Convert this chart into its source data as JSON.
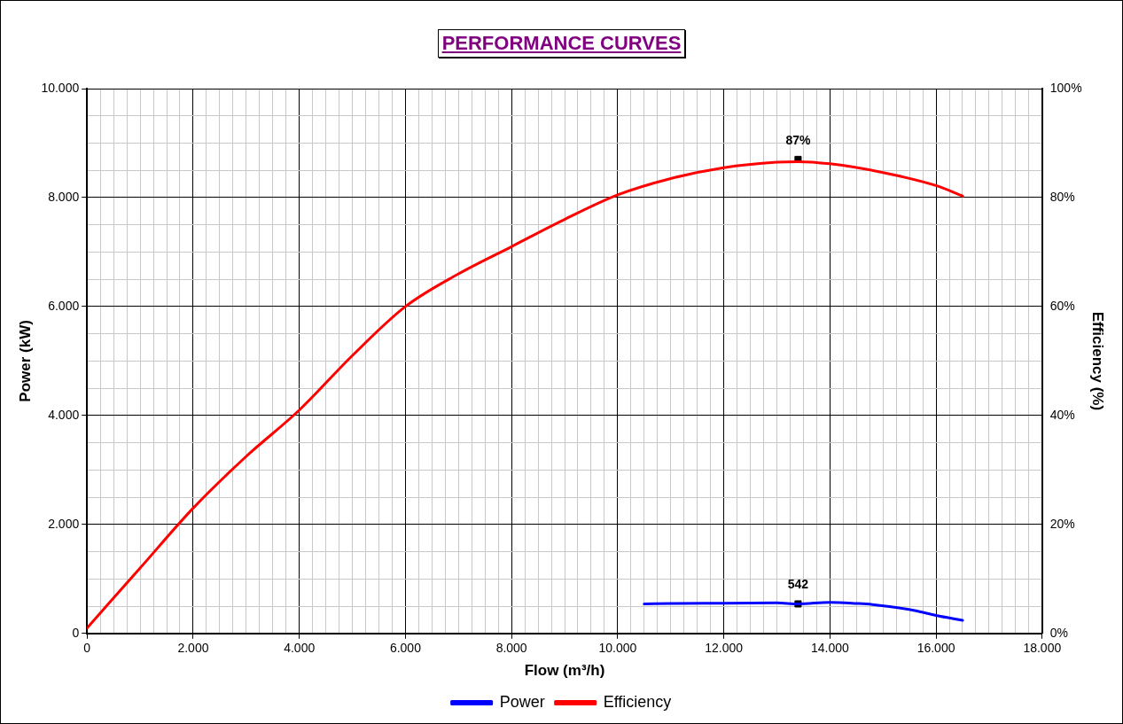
{
  "chart_data": {
    "type": "line",
    "title": "PERFORMANCE CURVES",
    "xlabel": "Flow (m³/h)",
    "ylabel": "Power (kW)",
    "y2label": "Efficiency (%)",
    "xlim": [
      0,
      18000
    ],
    "xticks": [
      0,
      {
        "value": 250,
        "label": null
      },
      {
        "value": 500,
        "label": null
      },
      {
        "value": 750,
        "label": null
      },
      {
        "value": 1000,
        "label": null
      },
      {
        "value": 1250,
        "label": null
      },
      {
        "value": 1500,
        "label": null
      },
      {
        "value": 1750,
        "label": null
      },
      {
        "value": 2000,
        "label": "2.000"
      },
      {
        "value": 2250,
        "label": null
      },
      {
        "value": 2500,
        "label": null
      },
      {
        "value": 2750,
        "label": null
      },
      {
        "value": 3000,
        "label": null
      },
      {
        "value": 3250,
        "label": null
      },
      {
        "value": 3500,
        "label": null
      },
      {
        "value": 3750,
        "label": null
      },
      {
        "value": 4000,
        "label": "4.000"
      },
      {
        "value": 4250,
        "label": null
      },
      {
        "value": 4500,
        "label": null
      },
      {
        "value": 4750,
        "label": null
      },
      {
        "value": 5000,
        "label": null
      },
      {
        "value": 5250,
        "label": null
      },
      {
        "value": 5500,
        "label": null
      },
      {
        "value": 5750,
        "label": null
      },
      {
        "value": 6000,
        "label": "6.000"
      },
      {
        "value": 6250,
        "label": null
      },
      {
        "value": 6500,
        "label": null
      },
      {
        "value": 6750,
        "label": null
      },
      {
        "value": 7000,
        "label": null
      },
      {
        "value": 7250,
        "label": null
      },
      {
        "value": 7500,
        "label": null
      },
      {
        "value": 7750,
        "label": null
      },
      {
        "value": 8000,
        "label": "8.000"
      },
      {
        "value": 8250,
        "label": null
      },
      {
        "value": 8500,
        "label": null
      },
      {
        "value": 8750,
        "label": null
      },
      {
        "value": 9000,
        "label": null
      },
      {
        "value": 9250,
        "label": null
      },
      {
        "value": 9500,
        "label": null
      },
      {
        "value": 9750,
        "label": null
      },
      {
        "value": 10000,
        "label": "10.000"
      },
      {
        "value": 10250,
        "label": null
      },
      {
        "value": 10500,
        "label": null
      },
      {
        "value": 10750,
        "label": null
      },
      {
        "value": 11000,
        "label": null
      },
      {
        "value": 11250,
        "label": null
      },
      {
        "value": 11500,
        "label": null
      },
      {
        "value": 11750,
        "label": null
      },
      {
        "value": 12000,
        "label": "12.000"
      },
      {
        "value": 12250,
        "label": null
      },
      {
        "value": 12500,
        "label": null
      },
      {
        "value": 12750,
        "label": null
      },
      {
        "value": 13000,
        "label": null
      },
      {
        "value": 13250,
        "label": null
      },
      {
        "value": 13500,
        "label": null
      },
      {
        "value": 13750,
        "label": null
      },
      {
        "value": 14000,
        "label": "14.000"
      },
      {
        "value": 14250,
        "label": null
      },
      {
        "value": 14500,
        "label": null
      },
      {
        "value": 14750,
        "label": null
      },
      {
        "value": 15000,
        "label": null
      },
      {
        "value": 15250,
        "label": null
      },
      {
        "value": 15500,
        "label": null
      },
      {
        "value": 15750,
        "label": null
      },
      {
        "value": 16000,
        "label": "16.000"
      },
      {
        "value": 16250,
        "label": null
      },
      {
        "value": 16500,
        "label": null
      },
      {
        "value": 16750,
        "label": null
      },
      {
        "value": 17000,
        "label": null
      },
      {
        "value": 17250,
        "label": null
      },
      {
        "value": 17500,
        "label": null
      },
      {
        "value": 17750,
        "label": null
      },
      {
        "value": 18000,
        "label": "18.000"
      }
    ],
    "ylim": [
      0,
      10000
    ],
    "yticks": [
      0,
      {
        "value": 500,
        "label": null
      },
      {
        "value": 1000,
        "label": null
      },
      {
        "value": 1500,
        "label": null
      },
      {
        "value": 2000,
        "label": "2.000"
      },
      {
        "value": 2500,
        "label": null
      },
      {
        "value": 3000,
        "label": null
      },
      {
        "value": 3500,
        "label": null
      },
      {
        "value": 4000,
        "label": "4.000"
      },
      {
        "value": 4500,
        "label": null
      },
      {
        "value": 5000,
        "label": null
      },
      {
        "value": 5500,
        "label": null
      },
      {
        "value": 6000,
        "label": "6.000"
      },
      {
        "value": 6500,
        "label": null
      },
      {
        "value": 7000,
        "label": null
      },
      {
        "value": 7500,
        "label": null
      },
      {
        "value": 8000,
        "label": "8.000"
      },
      {
        "value": 8500,
        "label": null
      },
      {
        "value": 9000,
        "label": null
      },
      {
        "value": 9500,
        "label": null
      },
      {
        "value": 10000,
        "label": "10.000"
      }
    ],
    "y2lim": [
      0,
      100
    ],
    "y2ticks": [
      {
        "value": 0,
        "label": "0%"
      },
      {
        "value": 20,
        "label": "20%"
      },
      {
        "value": 40,
        "label": "40%"
      },
      {
        "value": 60,
        "label": "60%"
      },
      {
        "value": 80,
        "label": "80%"
      },
      {
        "value": 100,
        "label": "100%"
      }
    ],
    "grid": true,
    "legend": "bottom",
    "line_style": "solid",
    "series": [
      {
        "name": "Power",
        "color": "#0000ff",
        "marker": "none",
        "x": [
          10500,
          11000,
          12000,
          13000,
          13400,
          14000,
          14500,
          14800,
          15600,
          16000,
          16500
        ],
        "values": [
          540,
          550,
          555,
          560,
          542,
          570,
          550,
          530,
          420,
          330,
          240
        ]
      },
      {
        "name": "Efficiency",
        "color": "#ff0000",
        "marker": "none",
        "axis": "y2",
        "x": [
          0,
          1000,
          2000,
          3000,
          4000,
          5000,
          6000,
          7000,
          8000,
          9000,
          10000,
          11000,
          12000,
          13000,
          13400,
          14000,
          15000,
          16000,
          16500
        ],
        "values": [
          1,
          12,
          23,
          32.5,
          41,
          51,
          60,
          66,
          71,
          76,
          80.5,
          83.5,
          85.5,
          86.5,
          86.6,
          86.2,
          84.6,
          82.2,
          80.3
        ]
      },
      {
        "type": "scatter",
        "color": "#000000",
        "marker": "square",
        "x": [
          13400
        ],
        "values": [
          542
        ],
        "value_labels": [
          "542"
        ]
      },
      {
        "type": "scatter",
        "color": "#000000",
        "marker": "square",
        "axis": "y2",
        "x": [
          13400
        ],
        "values": [
          87
        ],
        "value_labels": [
          "87%"
        ]
      }
    ]
  }
}
